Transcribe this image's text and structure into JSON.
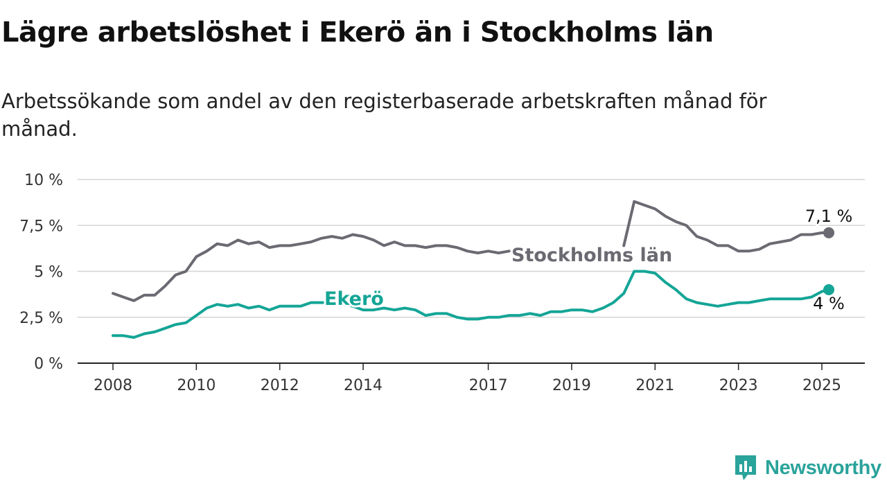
{
  "title": "Lägre arbetslöshet i Ekerö än i Stockholms län",
  "subtitle": "Arbetssökande som andel av den registerbaserade arbetskraften månad för månad.",
  "brand": {
    "name": "Newsworthy",
    "icon": "newsworthy-logo-icon",
    "color": "#2aa39b"
  },
  "chart_data": {
    "type": "line",
    "title": "Lägre arbetslöshet i Ekerö än i Stockholms län",
    "subtitle": "Arbetssökande som andel av den registerbaserade arbetskraften månad för månad.",
    "xlabel": "",
    "ylabel": "",
    "x_ticks": [
      "2008",
      "2010",
      "2012",
      "2014",
      "2017",
      "2019",
      "2021",
      "2023",
      "2025"
    ],
    "y_ticks": [
      "0 %",
      "2,5 %",
      "5 %",
      "7,5 %",
      "10 %"
    ],
    "ylim": [
      0,
      10
    ],
    "xlim": [
      "2007-09",
      "2025-09"
    ],
    "grid": "horizontal",
    "legend": "inline labels",
    "gap": [
      "2017-08",
      "2020-04"
    ],
    "series": [
      {
        "name": "Stockholms län",
        "color": "#6b6a72",
        "end_label": "7,1 %",
        "points": [
          [
            "2008-01",
            3.8
          ],
          [
            "2008-04",
            3.6
          ],
          [
            "2008-07",
            3.4
          ],
          [
            "2008-10",
            3.7
          ],
          [
            "2009-01",
            3.7
          ],
          [
            "2009-04",
            4.2
          ],
          [
            "2009-07",
            4.8
          ],
          [
            "2009-10",
            5.0
          ],
          [
            "2010-01",
            5.8
          ],
          [
            "2010-04",
            6.1
          ],
          [
            "2010-07",
            6.5
          ],
          [
            "2010-10",
            6.4
          ],
          [
            "2011-01",
            6.7
          ],
          [
            "2011-04",
            6.5
          ],
          [
            "2011-07",
            6.6
          ],
          [
            "2011-10",
            6.3
          ],
          [
            "2012-01",
            6.4
          ],
          [
            "2012-04",
            6.4
          ],
          [
            "2012-07",
            6.5
          ],
          [
            "2012-10",
            6.6
          ],
          [
            "2013-01",
            6.8
          ],
          [
            "2013-04",
            6.9
          ],
          [
            "2013-07",
            6.8
          ],
          [
            "2013-10",
            7.0
          ],
          [
            "2014-01",
            6.9
          ],
          [
            "2014-04",
            6.7
          ],
          [
            "2014-07",
            6.4
          ],
          [
            "2014-10",
            6.6
          ],
          [
            "2015-01",
            6.4
          ],
          [
            "2015-04",
            6.4
          ],
          [
            "2015-07",
            6.3
          ],
          [
            "2015-10",
            6.4
          ],
          [
            "2016-01",
            6.4
          ],
          [
            "2016-04",
            6.3
          ],
          [
            "2016-07",
            6.1
          ],
          [
            "2016-10",
            6.0
          ],
          [
            "2017-01",
            6.1
          ],
          [
            "2017-04",
            6.0
          ],
          [
            "2017-07",
            6.1
          ],
          [
            "2020-04",
            6.4
          ],
          [
            "2020-07",
            8.8
          ],
          [
            "2020-10",
            8.6
          ],
          [
            "2021-01",
            8.4
          ],
          [
            "2021-04",
            8.0
          ],
          [
            "2021-07",
            7.7
          ],
          [
            "2021-10",
            7.5
          ],
          [
            "2022-01",
            6.9
          ],
          [
            "2022-04",
            6.7
          ],
          [
            "2022-07",
            6.4
          ],
          [
            "2022-10",
            6.4
          ],
          [
            "2023-01",
            6.1
          ],
          [
            "2023-04",
            6.1
          ],
          [
            "2023-07",
            6.2
          ],
          [
            "2023-10",
            6.5
          ],
          [
            "2024-01",
            6.6
          ],
          [
            "2024-04",
            6.7
          ],
          [
            "2024-07",
            7.0
          ],
          [
            "2024-10",
            7.0
          ],
          [
            "2025-01",
            7.1
          ],
          [
            "2025-03",
            7.1
          ]
        ]
      },
      {
        "name": "Ekerö",
        "color": "#14a596",
        "end_label": "4 %",
        "points": [
          [
            "2008-01",
            1.5
          ],
          [
            "2008-04",
            1.5
          ],
          [
            "2008-07",
            1.4
          ],
          [
            "2008-10",
            1.6
          ],
          [
            "2009-01",
            1.7
          ],
          [
            "2009-04",
            1.9
          ],
          [
            "2009-07",
            2.1
          ],
          [
            "2009-10",
            2.2
          ],
          [
            "2010-01",
            2.6
          ],
          [
            "2010-04",
            3.0
          ],
          [
            "2010-07",
            3.2
          ],
          [
            "2010-10",
            3.1
          ],
          [
            "2011-01",
            3.2
          ],
          [
            "2011-04",
            3.0
          ],
          [
            "2011-07",
            3.1
          ],
          [
            "2011-10",
            2.9
          ],
          [
            "2012-01",
            3.1
          ],
          [
            "2012-04",
            3.1
          ],
          [
            "2012-07",
            3.1
          ],
          [
            "2012-10",
            3.3
          ],
          [
            "2013-01",
            3.3
          ],
          [
            "2013-04",
            3.3
          ],
          [
            "2013-07",
            3.2
          ],
          [
            "2013-10",
            3.1
          ],
          [
            "2014-01",
            2.9
          ],
          [
            "2014-04",
            2.9
          ],
          [
            "2014-07",
            3.0
          ],
          [
            "2014-10",
            2.9
          ],
          [
            "2015-01",
            3.0
          ],
          [
            "2015-04",
            2.9
          ],
          [
            "2015-07",
            2.6
          ],
          [
            "2015-10",
            2.7
          ],
          [
            "2016-01",
            2.7
          ],
          [
            "2016-04",
            2.5
          ],
          [
            "2016-07",
            2.4
          ],
          [
            "2016-10",
            2.4
          ],
          [
            "2017-01",
            2.5
          ],
          [
            "2017-04",
            2.5
          ],
          [
            "2017-07",
            2.6
          ],
          [
            "2017-10",
            2.6
          ],
          [
            "2018-01",
            2.7
          ],
          [
            "2018-04",
            2.6
          ],
          [
            "2018-07",
            2.8
          ],
          [
            "2018-10",
            2.8
          ],
          [
            "2019-01",
            2.9
          ],
          [
            "2019-04",
            2.9
          ],
          [
            "2019-07",
            2.8
          ],
          [
            "2019-10",
            3.0
          ],
          [
            "2020-01",
            3.3
          ],
          [
            "2020-04",
            3.8
          ],
          [
            "2020-07",
            5.0
          ],
          [
            "2020-10",
            5.0
          ],
          [
            "2021-01",
            4.9
          ],
          [
            "2021-04",
            4.4
          ],
          [
            "2021-07",
            4.0
          ],
          [
            "2021-10",
            3.5
          ],
          [
            "2022-01",
            3.3
          ],
          [
            "2022-04",
            3.2
          ],
          [
            "2022-07",
            3.1
          ],
          [
            "2022-10",
            3.2
          ],
          [
            "2023-01",
            3.3
          ],
          [
            "2023-04",
            3.3
          ],
          [
            "2023-07",
            3.4
          ],
          [
            "2023-10",
            3.5
          ],
          [
            "2024-01",
            3.5
          ],
          [
            "2024-04",
            3.5
          ],
          [
            "2024-07",
            3.5
          ],
          [
            "2024-10",
            3.6
          ],
          [
            "2025-01",
            3.9
          ],
          [
            "2025-03",
            4.0
          ]
        ]
      }
    ]
  }
}
